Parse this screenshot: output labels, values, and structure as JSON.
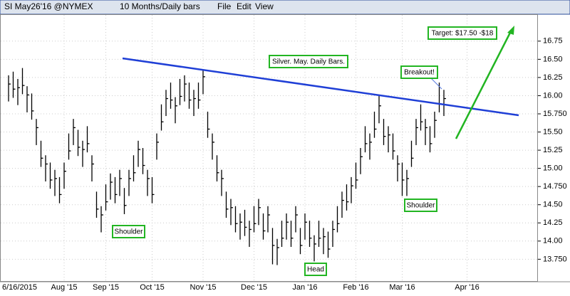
{
  "header": {
    "symbol": "SI May26'16 @NYMEX",
    "period": "10 Months/Daily bars",
    "menu": [
      "File",
      "Edit",
      "View"
    ]
  },
  "chart_data": {
    "type": "ohlc",
    "annotations": [
      "Silver. May. Daily Bars.",
      "Target: $17.50 -$18",
      "Breakout!",
      "Shoulder",
      "Head",
      "Shoulder"
    ],
    "categories": [
      "6/16/2015",
      null,
      null,
      null,
      null,
      null,
      null,
      null,
      null,
      null,
      null,
      null,
      "Aug '15",
      null,
      null,
      null,
      null,
      null,
      null,
      null,
      null,
      "Sep '15",
      null,
      null,
      null,
      null,
      null,
      null,
      null,
      null,
      null,
      "Oct '15",
      null,
      null,
      null,
      null,
      null,
      null,
      null,
      null,
      null,
      null,
      "Nov '15",
      null,
      null,
      null,
      null,
      null,
      null,
      null,
      null,
      null,
      null,
      "Dec '15",
      null,
      null,
      null,
      null,
      null,
      null,
      null,
      null,
      null,
      null,
      "Jan '16",
      null,
      null,
      null,
      null,
      null,
      null,
      null,
      null,
      null,
      null,
      "Feb '16",
      null,
      null,
      null,
      null,
      null,
      null,
      null,
      null,
      null,
      "Mar '16",
      null,
      null,
      null,
      null,
      null,
      null,
      null,
      null,
      null,
      null,
      null,
      null,
      null,
      "Apr '16"
    ],
    "high": [
      16.28,
      16.33,
      16.23,
      16.38,
      16.13,
      16.03,
      15.68,
      15.38,
      15.18,
      15.08,
      14.98,
      14.88,
      15.08,
      15.48,
      15.68,
      15.53,
      15.38,
      15.58,
      15.18,
      14.68,
      14.48,
      14.78,
      14.93,
      14.88,
      14.98,
      14.73,
      14.98,
      15.18,
      15.38,
      15.28,
      14.98,
      14.88,
      15.48,
      15.88,
      16.08,
      16.18,
      15.98,
      16.23,
      16.28,
      16.18,
      16.08,
      16.18,
      16.36,
      15.78,
      15.48,
      15.18,
      14.98,
      14.68,
      14.58,
      14.48,
      14.38,
      14.43,
      14.28,
      14.48,
      14.58,
      14.38,
      14.48,
      14.18,
      14.03,
      14.28,
      14.38,
      14.28,
      14.48,
      14.18,
      14.38,
      14.28,
      14.08,
      14.28,
      14.18,
      14.13,
      14.28,
      14.48,
      14.68,
      14.78,
      14.88,
      15.08,
      15.28,
      15.58,
      15.48,
      15.78,
      16.0,
      15.68,
      15.58,
      15.48,
      15.18,
      15.08,
      14.98,
      15.38,
      15.68,
      15.88,
      15.68,
      15.58,
      15.78,
      16.18,
      16.08,
      null,
      null,
      null,
      null,
      null
    ],
    "low": [
      15.92,
      15.97,
      15.87,
      16.02,
      15.77,
      15.67,
      15.32,
      15.02,
      14.82,
      14.72,
      14.62,
      14.52,
      14.72,
      15.12,
      15.32,
      15.17,
      15.02,
      15.22,
      14.82,
      14.32,
      14.12,
      14.42,
      14.57,
      14.52,
      14.62,
      14.37,
      14.62,
      14.82,
      15.02,
      14.92,
      14.62,
      14.52,
      15.12,
      15.52,
      15.72,
      15.82,
      15.62,
      15.87,
      15.92,
      15.82,
      15.72,
      15.82,
      16.02,
      15.42,
      15.12,
      14.82,
      14.62,
      14.32,
      14.22,
      14.12,
      14.02,
      14.07,
      13.92,
      14.12,
      14.22,
      14.02,
      14.12,
      13.68,
      13.67,
      13.92,
      14.02,
      13.92,
      14.12,
      13.82,
      14.02,
      13.92,
      13.72,
      13.92,
      13.82,
      13.77,
      13.92,
      14.12,
      14.32,
      14.42,
      14.52,
      14.72,
      14.92,
      15.22,
      15.12,
      15.42,
      15.62,
      15.32,
      15.22,
      15.12,
      14.82,
      14.62,
      14.62,
      15.02,
      15.32,
      15.52,
      15.32,
      15.22,
      15.42,
      15.77,
      15.72,
      null,
      null,
      null,
      null,
      null
    ],
    "close": [
      16.16,
      16.09,
      16.11,
      16.14,
      16.01,
      15.79,
      15.56,
      15.14,
      15.06,
      14.84,
      14.86,
      14.64,
      14.96,
      15.24,
      15.56,
      15.29,
      15.26,
      15.34,
      15.06,
      14.44,
      14.36,
      14.54,
      14.81,
      14.64,
      14.86,
      14.49,
      14.86,
      14.94,
      15.26,
      15.04,
      14.86,
      14.64,
      15.36,
      15.64,
      15.96,
      15.94,
      15.86,
      15.99,
      16.16,
      15.94,
      15.96,
      15.94,
      16.26,
      15.54,
      15.36,
      14.94,
      14.86,
      14.44,
      14.46,
      14.24,
      14.26,
      14.19,
      14.16,
      14.24,
      14.46,
      14.14,
      14.36,
      13.94,
      13.91,
      14.04,
      14.26,
      14.04,
      14.36,
      13.94,
      14.26,
      14.04,
      13.96,
      14.04,
      14.06,
      13.89,
      14.16,
      14.24,
      14.56,
      14.54,
      14.76,
      14.84,
      15.16,
      15.34,
      15.36,
      15.54,
      15.86,
      15.44,
      15.46,
      15.24,
      15.06,
      14.84,
      14.86,
      15.14,
      15.56,
      15.64,
      15.56,
      15.34,
      15.66,
      15.89,
      15.96,
      null,
      null,
      null,
      null,
      null
    ],
    "color": "#000000",
    "ylim": [
      13.45,
      17.12
    ],
    "yticks": [
      {
        "value": 13.75,
        "label": "13.750"
      },
      {
        "value": 14,
        "label": "14.00"
      },
      {
        "value": 14.25,
        "label": "14.25"
      },
      {
        "value": 14.5,
        "label": "14.50"
      },
      {
        "value": 14.75,
        "label": "14.750"
      },
      {
        "value": 15,
        "label": "15.00"
      },
      {
        "value": 15.25,
        "label": "15.25"
      },
      {
        "value": 15.5,
        "label": "15.50"
      },
      {
        "value": 15.75,
        "label": "15.750"
      },
      {
        "value": 16,
        "label": "16.00"
      },
      {
        "value": 16.25,
        "label": "16.25"
      },
      {
        "value": 16.5,
        "label": "16.50"
      },
      {
        "value": 16.75,
        "label": "16.75"
      }
    ],
    "grid": true
  }
}
